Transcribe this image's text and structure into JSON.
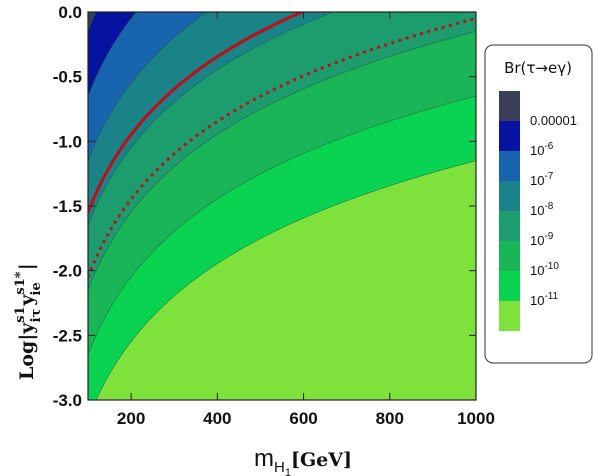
{
  "chart_data": {
    "type": "contour",
    "xlabel": {
      "main": "m",
      "sub": "H",
      "subsub": "1",
      "unit": "[GeV]"
    },
    "ylabel": {
      "main": "Log|y",
      "sup1": "s1",
      "sub1": "iτ",
      "mid": "y",
      "sup2": "s1*",
      "sub2": "ie",
      "end": "|"
    },
    "x_range": [
      100,
      1000
    ],
    "y_range": [
      -3.0,
      0.0
    ],
    "x_ticks": [
      "200",
      "400",
      "600",
      "800",
      "1000"
    ],
    "x_tick_values": [
      200,
      400,
      600,
      800,
      1000
    ],
    "y_ticks": [
      "0.0",
      "-0.5",
      "-1.0",
      "-1.5",
      "-2.0",
      "-2.5",
      "-3.0"
    ],
    "y_tick_values": [
      0.0,
      -0.5,
      -1.0,
      -1.5,
      -2.0,
      -2.5,
      -3.0
    ],
    "contour_model": {
      "form": "log10(Br) = c + 2*y - 4*log10(mH1/100)",
      "c": -4.7
    },
    "levels": [
      -11,
      -10,
      -9,
      -8,
      -7,
      -6,
      -5
    ],
    "band_colors": [
      "#7fe23c",
      "#0ad351",
      "#19b556",
      "#1d9d6e",
      "#1a8388",
      "#1864ae",
      "#0612a0",
      "#3a3e57"
    ],
    "curves": [
      {
        "style": "solid",
        "color": "#b5141c",
        "y_at_mH1_100": -1.55
      },
      {
        "style": "dotted",
        "color": "#b5141c",
        "y_at_mH1_100": -2.05
      }
    ],
    "legend": {
      "title": "Br(τ→eγ)",
      "entries": [
        {
          "label": "0.00001",
          "color": "#3a3e57"
        },
        {
          "label": "10",
          "exp": "-6",
          "color": "#0612a0"
        },
        {
          "label": "10",
          "exp": "-7",
          "color": "#1864ae"
        },
        {
          "label": "10",
          "exp": "-8",
          "color": "#1a8388"
        },
        {
          "label": "10",
          "exp": "-9",
          "color": "#1d9d6e"
        },
        {
          "label": "10",
          "exp": "-10",
          "color": "#19b556"
        },
        {
          "label": "10",
          "exp": "-11",
          "color": "#0ad351"
        },
        {
          "label": "",
          "color": "#7fe23c"
        }
      ]
    }
  }
}
